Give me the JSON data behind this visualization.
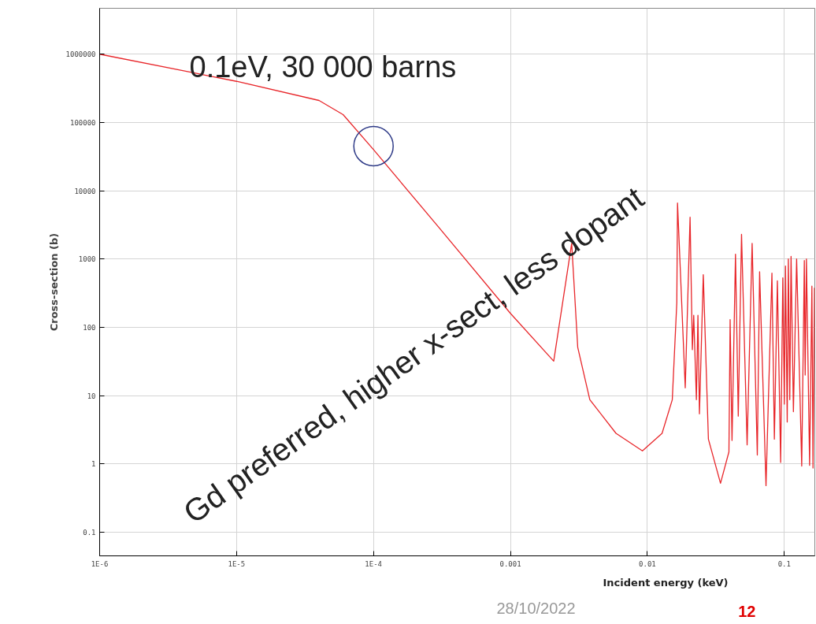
{
  "chart_data": {
    "type": "line",
    "xlabel": "Incident energy (keV)",
    "ylabel": "Cross-section (b)",
    "log": "xy",
    "grid": true,
    "xlim": [
      1e-06,
      0.167
    ],
    "ylim": [
      0.045,
      4700000
    ],
    "xticks": [
      {
        "value": 1e-06,
        "label": "1E-6"
      },
      {
        "value": 1e-05,
        "label": "1E-5"
      },
      {
        "value": 0.0001,
        "label": "1E-4"
      },
      0.001,
      0.01,
      0.1
    ],
    "yticks": [
      0.1,
      1,
      10,
      100,
      1000,
      10000,
      100000,
      1000000
    ],
    "x": [
      1e-06,
      1e-05,
      4e-05,
      6e-05,
      0.0001,
      0.0003,
      0.001,
      0.00207,
      0.0028,
      0.0031,
      0.0038,
      0.0059,
      0.0092,
      0.0128,
      0.0152,
      0.0164,
      0.0166,
      0.0189,
      0.0205,
      0.0213,
      0.0218,
      0.0228,
      0.0234,
      0.024,
      0.0256,
      0.0279,
      0.0342,
      0.0394,
      0.0402,
      0.0415,
      0.044,
      0.0461,
      0.0487,
      0.0535,
      0.0582,
      0.0635,
      0.066,
      0.0735,
      0.0812,
      0.0846,
      0.089,
      0.094,
      0.0975,
      0.1,
      0.102,
      0.105,
      0.107,
      0.1096,
      0.112,
      0.1165,
      0.123,
      0.134,
      0.14,
      0.142,
      0.145,
      0.153,
      0.159,
      0.162,
      0.166
    ],
    "series": [
      {
        "color": "#e8262a",
        "values": [
          1000000,
          400000,
          210000,
          130000,
          40000,
          2900,
          160,
          32,
          1700,
          51,
          8.7,
          2.8,
          1.55,
          2.8,
          8.7,
          230,
          6600,
          13,
          4100,
          47,
          150,
          8.7,
          150,
          5.4,
          590,
          2.3,
          0.52,
          1.5,
          130,
          2.2,
          1180,
          5,
          2300,
          1.9,
          1700,
          1.35,
          650,
          0.48,
          620,
          2.3,
          480,
          1.05,
          530,
          7.5,
          790,
          4.1,
          1000,
          8.7,
          1090,
          5.8,
          1000,
          0.93,
          950,
          20,
          1000,
          0.95,
          400,
          0.87,
          380
        ]
      }
    ],
    "annotations": [
      {
        "text": "0.1eV, 30 000 barns",
        "x": 0.0001,
        "y": 45000
      },
      "Gd preferred, higher x-sect, less dopant",
      "28/10/2022",
      "12"
    ]
  }
}
